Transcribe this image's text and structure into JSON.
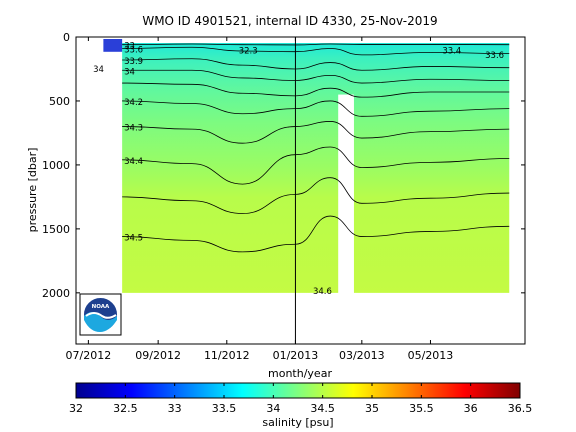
{
  "chart_data": {
    "type": "heatmap",
    "title": "WMO ID 4901521, internal ID 4330, 25-Nov-2019",
    "xlabel": "month/year",
    "ylabel": "pressure [dbar]",
    "x_tick_labels": [
      "07/2012",
      "09/2012",
      "11/2012",
      "01/2013",
      "03/2013",
      "05/2013"
    ],
    "x_ticks": [
      "2012-07-01",
      "2012-09-01",
      "2012-11-01",
      "2013-01-01",
      "2013-03-01",
      "2013-05-01"
    ],
    "xlim": [
      "2012-06-20",
      "2013-07-24"
    ],
    "ylim": [
      0,
      2400
    ],
    "y_reversed": true,
    "y_ticks": [
      0,
      500,
      1000,
      1500,
      2000
    ],
    "y_tick_labels": [
      "0",
      "500",
      "1000",
      "1500",
      "2000"
    ],
    "vertical_marker_date": "2013-01-01",
    "profiles_start_date": "2012-07-31",
    "profiles_end_date": "2013-07-10",
    "gap_date_range": [
      "2013-02-08",
      "2013-02-22"
    ],
    "surface_low_salinity_date_range": [
      "2012-07-01",
      "2012-07-31"
    ],
    "colorbar": {
      "label": "salinity [psu]",
      "range": [
        32,
        36.5
      ],
      "ticks": [
        32,
        32.5,
        33,
        33.5,
        34,
        34.5,
        35,
        35.5,
        36,
        36.5
      ],
      "tick_labels": [
        "32",
        "32.5",
        "33",
        "33.5",
        "34",
        "34.5",
        "35",
        "35.5",
        "36",
        "36.5"
      ],
      "colormap": "jet"
    },
    "contour_lines": [
      {
        "level": "33",
        "label": "33",
        "pressure": [
          [
            "2012-07-31",
            60
          ],
          [
            "2012-10-01",
            55
          ],
          [
            "2012-11-15",
            60
          ],
          [
            "2013-01-01",
            62
          ],
          [
            "2013-02-01",
            55
          ],
          [
            "2013-03-01",
            58
          ],
          [
            "2013-05-01",
            58
          ],
          [
            "2013-07-10",
            60
          ]
        ]
      },
      {
        "level": "33.6",
        "label": "33.6",
        "pressure": [
          [
            "2012-07-31",
            90
          ],
          [
            "2012-10-01",
            80
          ],
          [
            "2012-11-15",
            110
          ],
          [
            "2013-01-01",
            115
          ],
          [
            "2013-02-01",
            90
          ],
          [
            "2013-03-01",
            140
          ],
          [
            "2013-05-01",
            120
          ],
          [
            "2013-07-10",
            130
          ]
        ]
      },
      {
        "level": "33.9",
        "label": "33.9",
        "pressure": [
          [
            "2012-07-31",
            180
          ],
          [
            "2012-10-01",
            170
          ],
          [
            "2012-11-15",
            220
          ],
          [
            "2013-01-01",
            250
          ],
          [
            "2013-02-01",
            200
          ],
          [
            "2013-03-01",
            260
          ],
          [
            "2013-05-01",
            230
          ],
          [
            "2013-07-10",
            240
          ]
        ]
      },
      {
        "level": "34",
        "label": "34",
        "pressure": [
          [
            "2012-07-31",
            260
          ],
          [
            "2012-10-01",
            260
          ],
          [
            "2012-11-15",
            320
          ],
          [
            "2013-01-01",
            340
          ],
          [
            "2013-02-01",
            300
          ],
          [
            "2013-03-01",
            360
          ],
          [
            "2013-05-01",
            330
          ],
          [
            "2013-07-10",
            340
          ]
        ]
      },
      {
        "level": "34.1",
        "label": "",
        "pressure": [
          [
            "2012-07-31",
            360
          ],
          [
            "2012-10-01",
            370
          ],
          [
            "2012-11-15",
            440
          ],
          [
            "2013-01-01",
            460
          ],
          [
            "2013-02-01",
            400
          ],
          [
            "2013-03-01",
            470
          ],
          [
            "2013-05-01",
            430
          ],
          [
            "2013-07-10",
            430
          ]
        ]
      },
      {
        "level": "34.2",
        "label": "34.2",
        "pressure": [
          [
            "2012-07-31",
            500
          ],
          [
            "2012-10-01",
            520
          ],
          [
            "2012-11-15",
            600
          ],
          [
            "2013-01-01",
            560
          ],
          [
            "2013-02-01",
            500
          ],
          [
            "2013-03-01",
            620
          ],
          [
            "2013-05-01",
            580
          ],
          [
            "2013-07-10",
            560
          ]
        ]
      },
      {
        "level": "34.3",
        "label": "34.3",
        "pressure": [
          [
            "2012-07-31",
            700
          ],
          [
            "2012-10-01",
            720
          ],
          [
            "2012-11-15",
            830
          ],
          [
            "2013-01-01",
            700
          ],
          [
            "2013-02-01",
            660
          ],
          [
            "2013-03-01",
            790
          ],
          [
            "2013-05-01",
            740
          ],
          [
            "2013-07-10",
            720
          ]
        ]
      },
      {
        "level": "34.4",
        "label": "34.4",
        "pressure": [
          [
            "2012-07-31",
            960
          ],
          [
            "2012-10-01",
            990
          ],
          [
            "2012-11-15",
            1150
          ],
          [
            "2013-01-01",
            920
          ],
          [
            "2013-02-01",
            860
          ],
          [
            "2013-03-01",
            1020
          ],
          [
            "2013-05-01",
            980
          ],
          [
            "2013-07-10",
            950
          ]
        ]
      },
      {
        "level": "34.45",
        "label": "",
        "pressure": [
          [
            "2012-07-31",
            1250
          ],
          [
            "2012-10-01",
            1280
          ],
          [
            "2012-11-15",
            1380
          ],
          [
            "2013-01-01",
            1230
          ],
          [
            "2013-02-01",
            1100
          ],
          [
            "2013-03-01",
            1300
          ],
          [
            "2013-05-01",
            1260
          ],
          [
            "2013-07-10",
            1220
          ]
        ]
      },
      {
        "level": "34.5",
        "label": "34.5",
        "pressure": [
          [
            "2012-07-31",
            1560
          ],
          [
            "2012-10-01",
            1590
          ],
          [
            "2012-11-15",
            1680
          ],
          [
            "2013-01-01",
            1620
          ],
          [
            "2013-02-01",
            1400
          ],
          [
            "2013-03-01",
            1560
          ],
          [
            "2013-05-01",
            1520
          ],
          [
            "2013-07-10",
            1480
          ]
        ]
      }
    ],
    "floating_labels": [
      {
        "text": "33.6",
        "date": "2013-06-27",
        "pressure": 140
      },
      {
        "text": "34",
        "date": "2012-07-10",
        "pressure": 250
      },
      {
        "text": "33.4",
        "date": "2013-05-20",
        "pressure": 105
      },
      {
        "text": "34.6",
        "date": "2013-01-25",
        "pressure": 1985
      },
      {
        "text": "32.3",
        "date": "2012-11-20",
        "pressure": 105
      }
    ]
  }
}
